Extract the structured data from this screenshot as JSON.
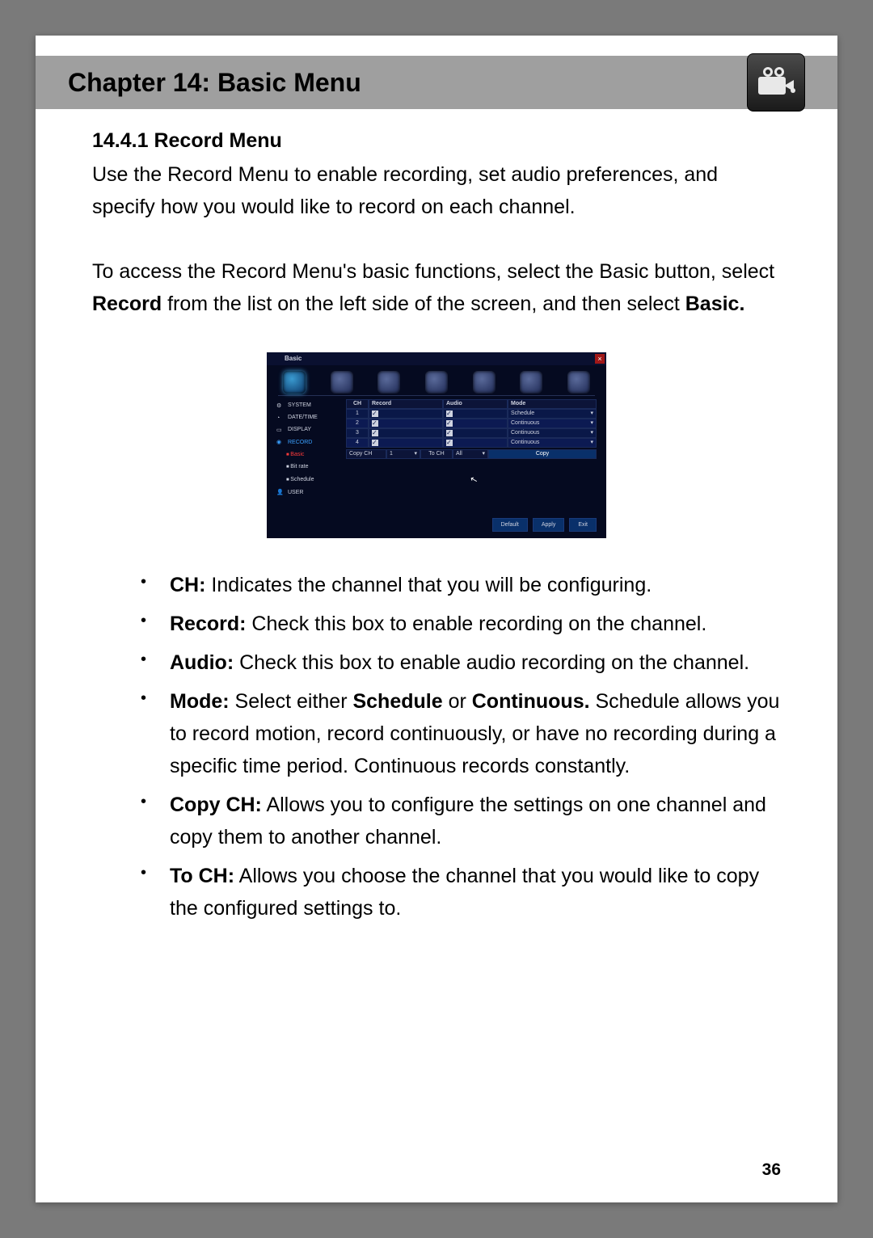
{
  "chapter_title": "Chapter 14: Basic Menu",
  "header_icon_name": "video-camera-icon",
  "page_number": "36",
  "section": {
    "heading": "14.4.1 Record Menu",
    "intro_para": "Use the Record Menu to enable recording, set audio preferences, and specify how you would like to record on each channel.",
    "access_para_pre": "To access the Record Menu's basic functions, select the Basic button, select ",
    "access_para_bold1": "Record",
    "access_para_mid": " from the list on the left side of the screen, and then select ",
    "access_para_bold2": "Basic.",
    "bullets": [
      {
        "term": "CH:",
        "desc": " Indicates the channel that you will be configuring."
      },
      {
        "term": "Record:",
        "desc": " Check this box to enable recording on the channel."
      },
      {
        "term": "Audio:",
        "desc": " Check this box to enable audio recording on the channel."
      },
      {
        "term": "Mode:",
        "desc_pre": " Select either ",
        "b1": "Schedule",
        "mid": " or ",
        "b2": "Continuous.",
        "desc_post": " Schedule allows you to record motion, record continuously, or have no recording during a specific time period. Continuous records constantly."
      },
      {
        "term": "Copy CH:",
        "desc": " Allows you to configure the settings on one channel and copy them to another channel."
      },
      {
        "term": "To CH:",
        "desc": " Allows you choose the channel that you would like to copy the configured settings to."
      }
    ]
  },
  "screenshot": {
    "window_title": "Basic",
    "close": "×",
    "sidebar": [
      {
        "icon": "gear",
        "label": "SYSTEM"
      },
      {
        "icon": "clock",
        "label": "DATE/TIME"
      },
      {
        "icon": "monitor",
        "label": "DISPLAY"
      },
      {
        "icon": "record",
        "label": "RECORD",
        "active": true
      },
      {
        "sub": true,
        "label": "Basic",
        "selected": true
      },
      {
        "sub": true,
        "label": "Bit rate"
      },
      {
        "sub": true,
        "label": "Schedule"
      },
      {
        "icon": "user",
        "label": "USER"
      }
    ],
    "table": {
      "headers": [
        "CH",
        "Record",
        "Audio",
        "Mode"
      ],
      "rows": [
        {
          "ch": "1",
          "mode": "Schedule"
        },
        {
          "ch": "2",
          "mode": "Continuous"
        },
        {
          "ch": "3",
          "mode": "Continuous"
        },
        {
          "ch": "4",
          "mode": "Continuous"
        }
      ]
    },
    "copy": {
      "copy_ch_label": "Copy CH",
      "copy_ch_value": "1",
      "to_ch_label": "To CH",
      "to_ch_value": "All",
      "copy_button": "Copy"
    },
    "footer_buttons": [
      "Default",
      "Apply",
      "Exit"
    ],
    "colors": {
      "bg": "#050a20",
      "panel": "#0a1030",
      "border": "#1a2a5a",
      "cell": "#0a1848",
      "cell_alt": "#0c1a52",
      "button": "#09306a",
      "text": "#cfd3e0",
      "active": "#3aa0ff",
      "selected": "#ff3a3a"
    }
  }
}
